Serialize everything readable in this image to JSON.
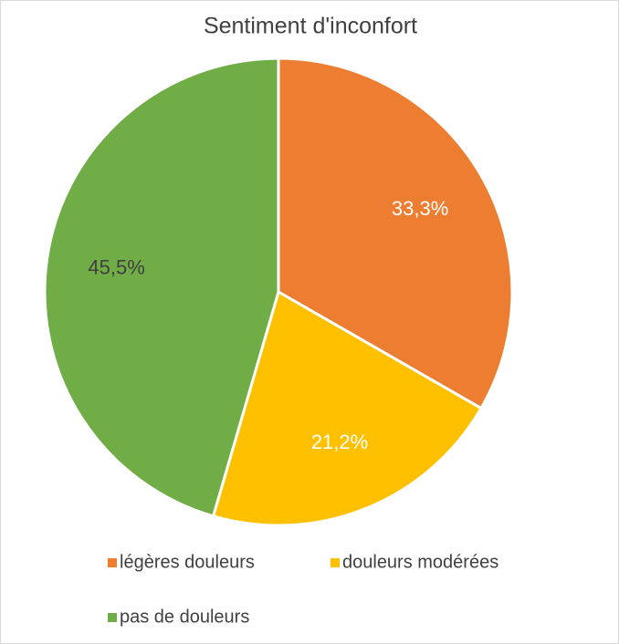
{
  "chart_data": {
    "type": "pie",
    "title": "Sentiment d'inconfort",
    "categories": [
      "légères douleurs",
      "douleurs modérées",
      "pas de douleurs"
    ],
    "values": [
      33.3,
      21.2,
      45.5
    ],
    "value_labels": [
      "33,3%",
      "21,2%",
      "45,5%"
    ],
    "colors": [
      "#ed7d31",
      "#ffc000",
      "#70ad47"
    ]
  }
}
